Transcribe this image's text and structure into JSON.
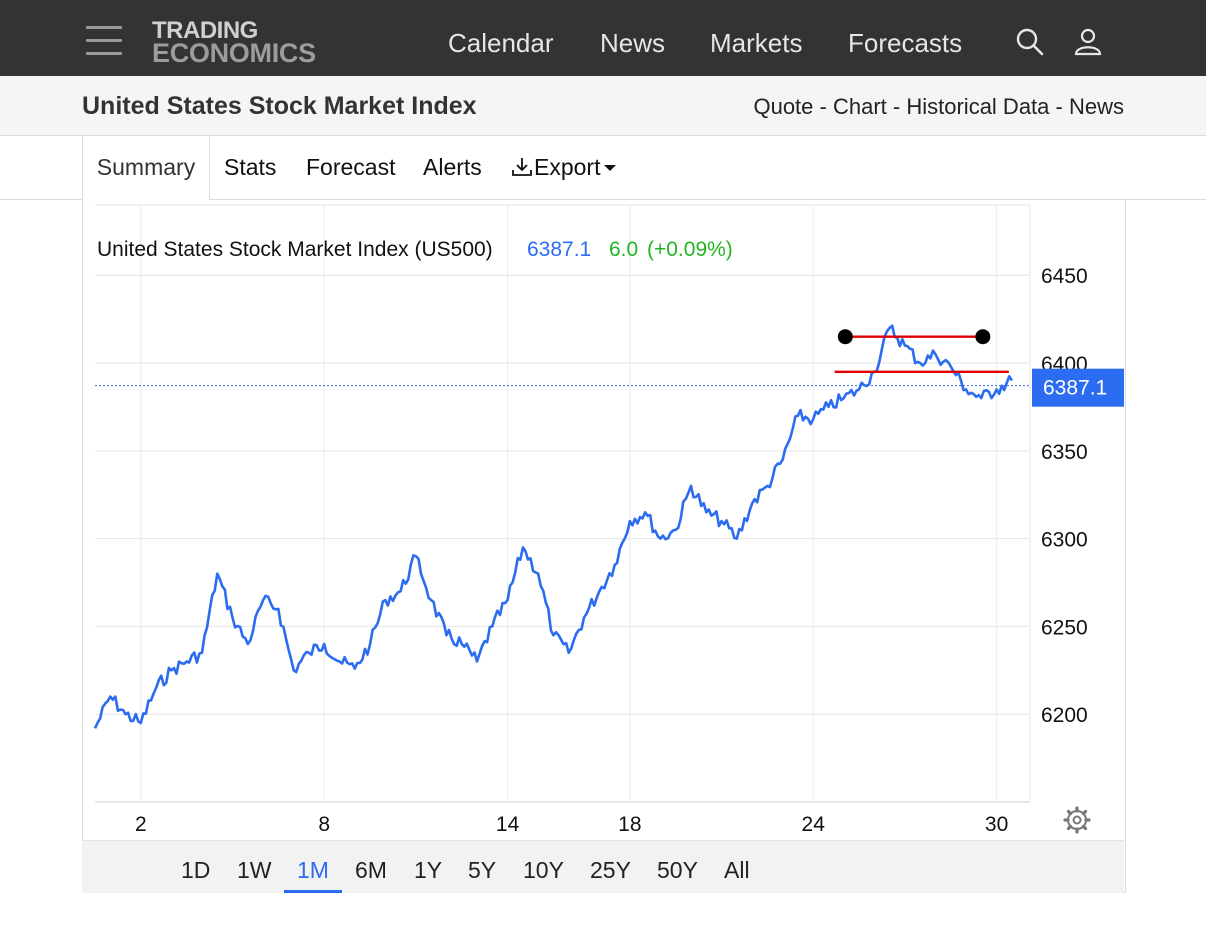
{
  "header": {
    "logo_line1": "TRADING",
    "logo_line2": "ECONOMICS",
    "nav": [
      "Calendar",
      "News",
      "Markets",
      "Forecasts"
    ],
    "icons": [
      "hamburger-menu-icon",
      "search-icon",
      "user-icon"
    ]
  },
  "subheader": {
    "title": "United States Stock Market Index",
    "links": [
      "Quote",
      "Chart",
      "Historical Data",
      "News"
    ],
    "separator": "-"
  },
  "tabs": {
    "items": [
      "Summary",
      "Stats",
      "Forecast",
      "Alerts",
      "Export"
    ],
    "active": "Summary",
    "export_icon": "download-icon"
  },
  "quote": {
    "name": "United States Stock Market Index (US500)",
    "price": "6387.1",
    "change": "6.0",
    "change_pct": "(+0.09%)"
  },
  "ranges": {
    "items": [
      "1D",
      "1W",
      "1M",
      "6M",
      "1Y",
      "5Y",
      "10Y",
      "25Y",
      "50Y",
      "All"
    ],
    "active": "1M"
  },
  "colors": {
    "line": "#2b6cf0",
    "price_label_bg": "#2b6cf0",
    "change_positive": "#22b522",
    "annotation": "#e00000"
  },
  "chart_data": {
    "type": "line",
    "x_ticks": [
      "2",
      "8",
      "14",
      "18",
      "24",
      "30"
    ],
    "y_ticks": [
      6200,
      6250,
      6300,
      6350,
      6400,
      6450
    ],
    "ylim": [
      6150,
      6490
    ],
    "last_value_label": "6387.1",
    "last_value": 6387.1,
    "grid": true,
    "x": [
      0.5,
      1,
      1.5,
      2,
      2.5,
      3,
      3.5,
      4,
      4.5,
      5,
      5.5,
      6,
      6.5,
      7,
      7.5,
      8,
      8.5,
      9,
      9.5,
      10,
      10.5,
      11,
      11.5,
      12,
      12.5,
      13,
      13.5,
      14,
      14.5,
      15,
      15.5,
      16,
      16.5,
      17,
      17.5,
      18,
      18.5,
      19,
      19.5,
      20,
      20.5,
      21,
      21.5,
      22,
      22.5,
      23,
      23.5,
      24,
      24.5,
      25,
      25.5,
      26,
      26.5,
      27,
      27.5,
      28,
      28.5,
      29,
      29.5,
      30,
      30.5
    ],
    "values": [
      6192,
      6210,
      6200,
      6195,
      6215,
      6225,
      6230,
      6235,
      6280,
      6255,
      6240,
      6265,
      6260,
      6225,
      6235,
      6240,
      6230,
      6226,
      6240,
      6265,
      6270,
      6290,
      6265,
      6245,
      6240,
      6230,
      6250,
      6265,
      6295,
      6280,
      6245,
      6235,
      6255,
      6270,
      6285,
      6310,
      6315,
      6300,
      6305,
      6330,
      6315,
      6310,
      6300,
      6320,
      6330,
      6345,
      6370,
      6368,
      6375,
      6380,
      6385,
      6395,
      6420,
      6410,
      6400,
      6405,
      6398,
      6385,
      6380,
      6385,
      6390
    ],
    "annotations": [
      {
        "type": "segment",
        "x1": 25.05,
        "y1": 6415,
        "x2": 29.55,
        "y2": 6415,
        "endpoints": true
      },
      {
        "type": "segment",
        "x1": 24.7,
        "y1": 6395,
        "x2": 30.4,
        "y2": 6395,
        "endpoints": false
      }
    ],
    "settings_icon": "gear-icon"
  }
}
